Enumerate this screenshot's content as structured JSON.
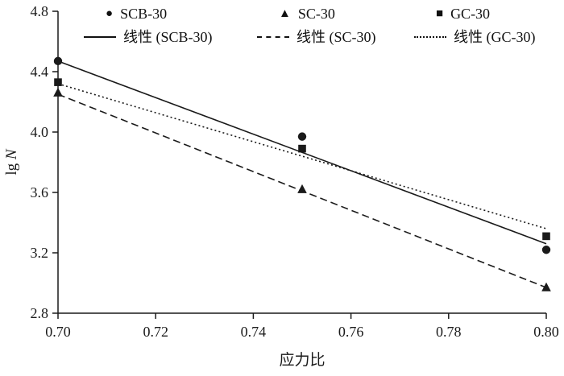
{
  "colors": {
    "foreground": "#1a1a1a",
    "background": "#ffffff"
  },
  "chart_data": {
    "type": "scatter",
    "title": "",
    "xlabel": "应力比",
    "ylabel": "lg N",
    "ylabel_prefix": "lg ",
    "ylabel_italic": "N",
    "xlim": [
      0.7,
      0.8
    ],
    "ylim": [
      2.8,
      4.8
    ],
    "xticks": [
      0.7,
      0.72,
      0.74,
      0.76,
      0.78,
      0.8
    ],
    "xtick_labels": [
      "0.70",
      "0.72",
      "0.74",
      "0.76",
      "0.78",
      "0.80"
    ],
    "yticks": [
      2.8,
      3.2,
      3.6,
      4.0,
      4.4,
      4.8
    ],
    "ytick_labels": [
      "2.8",
      "3.2",
      "3.6",
      "4.0",
      "4.4",
      "4.8"
    ],
    "grid": false,
    "legend_position": "top",
    "series": [
      {
        "name": "SCB-30",
        "marker": "circle",
        "x": [
          0.7,
          0.75,
          0.8
        ],
        "y": [
          4.47,
          3.97,
          3.22
        ]
      },
      {
        "name": "SC-30",
        "marker": "triangle",
        "x": [
          0.7,
          0.75,
          0.8
        ],
        "y": [
          4.26,
          3.62,
          2.97
        ]
      },
      {
        "name": "GC-30",
        "marker": "square",
        "x": [
          0.7,
          0.75,
          0.8
        ],
        "y": [
          4.33,
          3.89,
          3.31
        ]
      }
    ],
    "trendlines": [
      {
        "name": "线性 (SCB-30)",
        "style": "solid",
        "x1": 0.7,
        "y1": 4.47,
        "x2": 0.8,
        "y2": 3.26
      },
      {
        "name": "线性 (SC-30)",
        "style": "dashed",
        "x1": 0.7,
        "y1": 4.25,
        "x2": 0.8,
        "y2": 2.97
      },
      {
        "name": "线性 (GC-30)",
        "style": "dotted",
        "x1": 0.7,
        "y1": 4.32,
        "x2": 0.8,
        "y2": 3.36
      }
    ]
  }
}
